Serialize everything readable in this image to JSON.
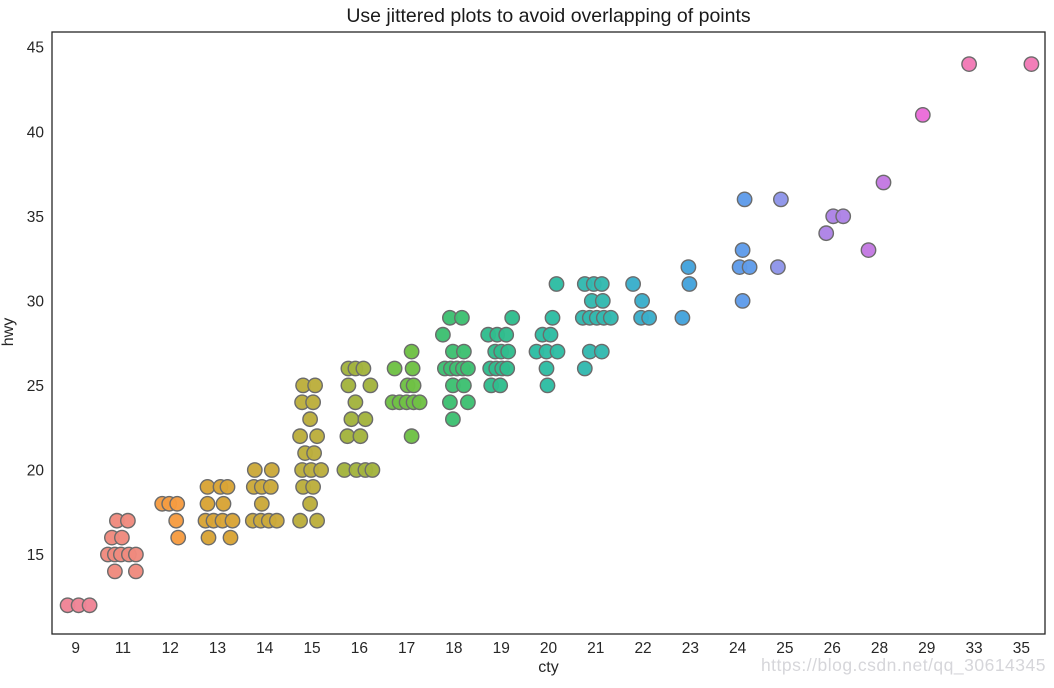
{
  "watermark": "https://blog.csdn.net/qq_30614345",
  "colors": {
    "background": "#ffffff",
    "axis_spine": "#262626",
    "tick_label": "#262626",
    "title": "#1a1a1a",
    "point_stroke": "#6b6b6b",
    "watermark": "#d6d6da"
  },
  "chart_data": {
    "type": "scatter",
    "subtype": "jittered-stripplot",
    "title": "Use jittered plots to avoid overlapping of points",
    "xlabel": "cty",
    "ylabel": "hwy",
    "x_categories": [
      "9",
      "11",
      "12",
      "13",
      "14",
      "15",
      "16",
      "17",
      "18",
      "19",
      "20",
      "21",
      "22",
      "23",
      "24",
      "25",
      "26",
      "28",
      "29",
      "33",
      "35"
    ],
    "y_ticks": [
      15,
      20,
      25,
      30,
      35,
      40,
      45
    ],
    "ylim": [
      10.3,
      45.9
    ],
    "grid": false,
    "legend": "none",
    "point_radius": 7.2,
    "series": [
      {
        "cty": "9",
        "color": "#ef8496",
        "points": [
          [
            12,
            -8
          ],
          [
            12,
            3
          ],
          [
            12,
            14
          ]
        ]
      },
      {
        "cty": "11",
        "color": "#f08a7e",
        "points": [
          [
            17,
            -6
          ],
          [
            17,
            5
          ],
          [
            16,
            -11
          ],
          [
            16,
            -1
          ],
          [
            15,
            -15
          ],
          [
            15,
            -8
          ],
          [
            15,
            -2
          ],
          [
            15,
            6
          ],
          [
            15,
            13
          ],
          [
            14,
            -8
          ],
          [
            14,
            13
          ]
        ]
      },
      {
        "cty": "12",
        "color": "#f69c41",
        "points": [
          [
            18,
            -8
          ],
          [
            18,
            -1
          ],
          [
            18,
            7
          ],
          [
            17,
            6
          ],
          [
            16,
            8
          ]
        ]
      },
      {
        "cty": "13",
        "color": "#d9a436",
        "points": [
          [
            19,
            -10
          ],
          [
            19,
            3
          ],
          [
            19,
            10
          ],
          [
            18,
            -10
          ],
          [
            18,
            6
          ],
          [
            17,
            -12
          ],
          [
            17,
            -4
          ],
          [
            17,
            5
          ],
          [
            17,
            15
          ],
          [
            16,
            -9
          ],
          [
            16,
            13
          ]
        ]
      },
      {
        "cty": "14",
        "color": "#cba93b",
        "points": [
          [
            20,
            -10
          ],
          [
            20,
            7
          ],
          [
            19,
            -11
          ],
          [
            19,
            -3
          ],
          [
            19,
            6
          ],
          [
            18,
            -3
          ],
          [
            17,
            -12
          ],
          [
            17,
            -4
          ],
          [
            17,
            4
          ],
          [
            17,
            12
          ]
        ]
      },
      {
        "cty": "15",
        "color": "#bcae3d",
        "points": [
          [
            25,
            -9
          ],
          [
            25,
            3
          ],
          [
            24,
            -10
          ],
          [
            24,
            1
          ],
          [
            23,
            -2
          ],
          [
            22,
            -12
          ],
          [
            22,
            5
          ],
          [
            21,
            -7
          ],
          [
            21,
            2
          ],
          [
            20,
            -10
          ],
          [
            20,
            -1
          ],
          [
            20,
            9
          ],
          [
            19,
            -9
          ],
          [
            19,
            1
          ],
          [
            18,
            -2
          ],
          [
            17,
            -12
          ],
          [
            17,
            5
          ]
        ]
      },
      {
        "cty": "16",
        "color": "#a3b43e",
        "points": [
          [
            26,
            -11
          ],
          [
            26,
            -4
          ],
          [
            26,
            4
          ],
          [
            25,
            -11
          ],
          [
            25,
            11
          ],
          [
            24,
            -4
          ],
          [
            23,
            -8
          ],
          [
            23,
            6
          ],
          [
            22,
            -12
          ],
          [
            22,
            1
          ],
          [
            20,
            -15
          ],
          [
            20,
            -3
          ],
          [
            20,
            6
          ],
          [
            20,
            13
          ]
        ]
      },
      {
        "cty": "17",
        "color": "#70c145",
        "points": [
          [
            27,
            5
          ],
          [
            26,
            -12
          ],
          [
            26,
            6
          ],
          [
            25,
            1
          ],
          [
            25,
            7
          ],
          [
            24,
            -14
          ],
          [
            24,
            -7
          ],
          [
            24,
            0
          ],
          [
            24,
            7
          ],
          [
            24,
            13
          ],
          [
            22,
            5
          ]
        ]
      },
      {
        "cty": "18",
        "color": "#3ec072",
        "points": [
          [
            29,
            -4
          ],
          [
            29,
            8
          ],
          [
            28,
            -11
          ],
          [
            27,
            -1
          ],
          [
            27,
            10
          ],
          [
            26,
            -9
          ],
          [
            26,
            -3
          ],
          [
            26,
            3
          ],
          [
            26,
            9
          ],
          [
            26,
            14
          ],
          [
            25,
            -1
          ],
          [
            25,
            10
          ],
          [
            24,
            -4
          ],
          [
            24,
            14
          ],
          [
            23,
            -1
          ]
        ]
      },
      {
        "cty": "19",
        "color": "#31bd8d",
        "points": [
          [
            29,
            11
          ],
          [
            28,
            -13
          ],
          [
            28,
            -4
          ],
          [
            28,
            5
          ],
          [
            27,
            -6
          ],
          [
            27,
            0
          ],
          [
            27,
            7
          ],
          [
            26,
            -11
          ],
          [
            26,
            -5
          ],
          [
            26,
            1
          ],
          [
            26,
            6
          ],
          [
            25,
            -10
          ],
          [
            25,
            -1
          ]
        ]
      },
      {
        "cty": "20",
        "color": "#2ebda3",
        "points": [
          [
            31,
            8
          ],
          [
            29,
            4
          ],
          [
            28,
            -6
          ],
          [
            28,
            2
          ],
          [
            27,
            -12
          ],
          [
            27,
            -2
          ],
          [
            27,
            9
          ],
          [
            26,
            -2
          ],
          [
            25,
            -1
          ]
        ]
      },
      {
        "cty": "21",
        "color": "#33b9af",
        "points": [
          [
            31,
            -11
          ],
          [
            31,
            -2
          ],
          [
            31,
            6
          ],
          [
            30,
            -4
          ],
          [
            30,
            7
          ],
          [
            29,
            -13
          ],
          [
            29,
            -6
          ],
          [
            29,
            1
          ],
          [
            29,
            8
          ],
          [
            29,
            15
          ],
          [
            27,
            -6
          ],
          [
            27,
            6
          ],
          [
            26,
            -11
          ]
        ]
      },
      {
        "cty": "22",
        "color": "#3aaecb",
        "points": [
          [
            31,
            -10
          ],
          [
            30,
            -1
          ],
          [
            29,
            -2
          ],
          [
            29,
            6
          ]
        ]
      },
      {
        "cty": "23",
        "color": "#44a3dc",
        "points": [
          [
            32,
            -2
          ],
          [
            31,
            -1
          ],
          [
            29,
            -8
          ]
        ]
      },
      {
        "cty": "24",
        "color": "#5f9cea",
        "points": [
          [
            36,
            7
          ],
          [
            33,
            5
          ],
          [
            32,
            2
          ],
          [
            32,
            12
          ],
          [
            30,
            5
          ]
        ]
      },
      {
        "cty": "25",
        "color": "#8e95e9",
        "points": [
          [
            36,
            -4
          ],
          [
            32,
            -7
          ]
        ]
      },
      {
        "cty": "26",
        "color": "#ad83e6",
        "points": [
          [
            35,
            1
          ],
          [
            35,
            11
          ],
          [
            34,
            -6
          ]
        ]
      },
      {
        "cty": "28",
        "color": "#c379e2",
        "points": [
          [
            37,
            4
          ],
          [
            33,
            -11
          ]
        ]
      },
      {
        "cty": "29",
        "color": "#ea6cd9",
        "points": [
          [
            41,
            -4
          ]
        ]
      },
      {
        "cty": "33",
        "color": "#f27ab6",
        "points": [
          [
            44,
            -5
          ]
        ]
      },
      {
        "cty": "35",
        "color": "#f27ab6",
        "points": [
          [
            44,
            10
          ]
        ]
      }
    ]
  }
}
